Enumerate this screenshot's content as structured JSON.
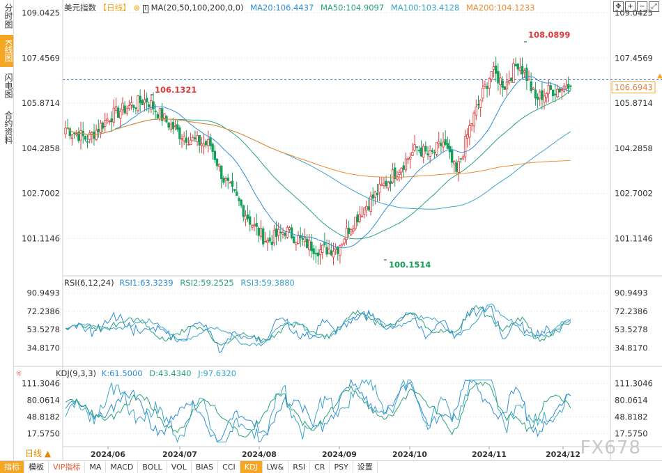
{
  "sidebar": {
    "tabs": [
      {
        "label": "分时图",
        "active": false
      },
      {
        "label": "K线图",
        "active": true
      },
      {
        "label": "闪电图",
        "active": false
      },
      {
        "label": "合约资料",
        "active": false
      }
    ]
  },
  "main_header": {
    "symbol": "美元指数",
    "period": "【日线】",
    "ma_label": "MA(20,50,100,200,0,0)",
    "ma20": "MA20:106.4437",
    "ma50": "MA50:104.9097",
    "ma100": "MA100:103.4128",
    "ma200": "MA200:104.1233"
  },
  "rsi_header": {
    "label": "RSI(6,12,24)",
    "rsi1": "RSI1:63.3239",
    "rsi2": "RSI2:59.2525",
    "rsi3": "RSI3:59.3880"
  },
  "kdj_header": {
    "label": "KDJ(9,3,3)",
    "k": "K:61.5000",
    "d": "D:43.4340",
    "j": "J:97.6320"
  },
  "colors": {
    "up": "#e03a3a",
    "down": "#14a05a",
    "ma20": "#2f8ed8",
    "ma50": "#2aa37a",
    "ma100": "#3aa5c8",
    "ma200": "#f08a30",
    "accent": "#f5a623"
  },
  "price_axis": [
    "109.0425",
    "107.4569",
    "105.8714",
    "104.2858",
    "102.7002",
    "101.1146"
  ],
  "current_price": "106.6943",
  "annotations": {
    "high": "108.0899",
    "mid_high": "106.1321",
    "low": "100.1514"
  },
  "rsi_axis": [
    "90.9493",
    "72.2386",
    "53.5278",
    "34.8170"
  ],
  "kdj_axis": [
    "111.3046",
    "80.0614",
    "48.8182",
    "17.5750"
  ],
  "date_axis": [
    "2024/06",
    "2024/07",
    "2024/08",
    "2024/09",
    "2024/10",
    "2024/11",
    "2024/12"
  ],
  "period_button": "日线",
  "bottom_tabs": [
    "指标",
    "模板",
    "VIP指标",
    "MA",
    "MACD",
    "BOLL",
    "VOL",
    "BIAS",
    "CCI",
    "KDJ",
    "LW&",
    "RSI",
    "CR",
    "PSY",
    "设置"
  ],
  "watermark": "FX678"
}
